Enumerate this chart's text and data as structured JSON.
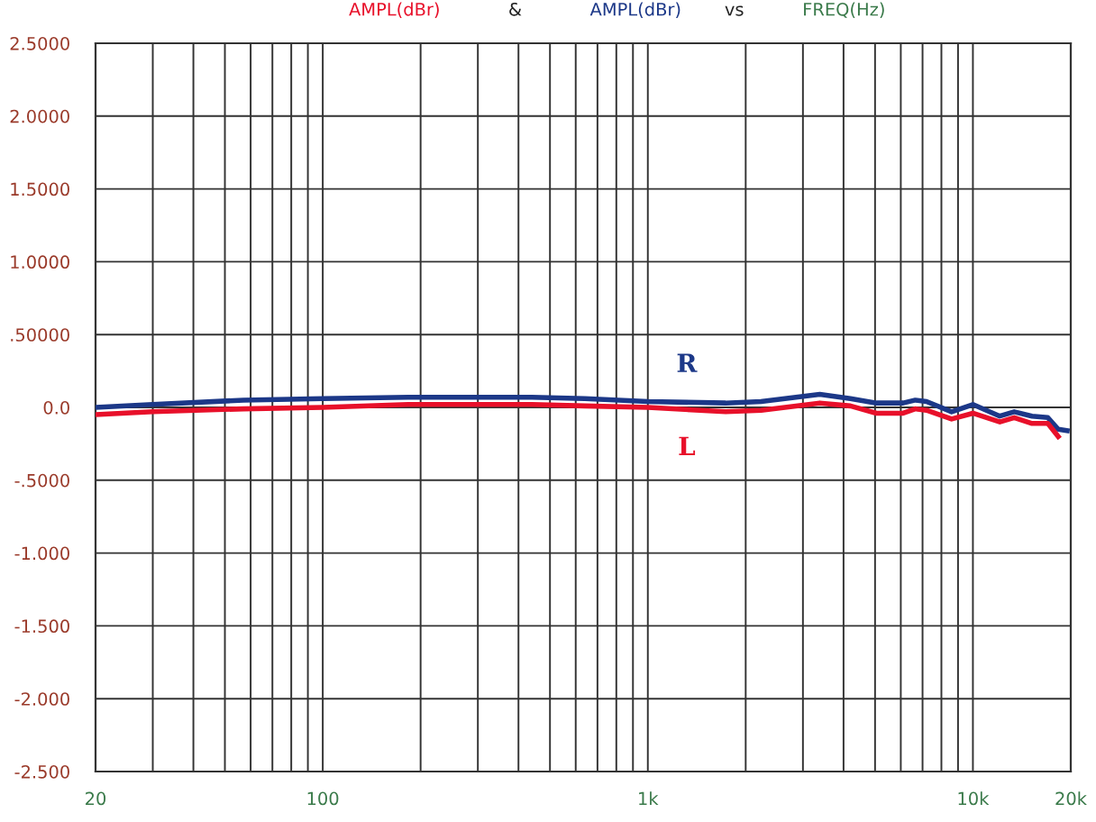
{
  "chart_data": {
    "type": "line",
    "annotations": [
      "AMPL(dBr)",
      "&",
      "AMPL(dBr)",
      "vs",
      "FREQ(Hz)"
    ],
    "x": [
      20,
      30,
      57,
      100,
      183,
      440,
      640,
      1000,
      1735,
      2230,
      3380,
      4200,
      5050,
      6100,
      6650,
      7200,
      8600,
      10000,
      12100,
      13400,
      15200,
      17000,
      18300,
      19500
    ],
    "series": [
      {
        "name": "R",
        "color": "#1c3888",
        "values": [
          0.0,
          0.02,
          0.05,
          0.06,
          0.07,
          0.07,
          0.06,
          0.04,
          0.03,
          0.04,
          0.09,
          0.06,
          0.03,
          0.03,
          0.05,
          0.04,
          -0.03,
          0.02,
          -0.06,
          -0.03,
          -0.06,
          -0.07,
          -0.15,
          -0.16
        ]
      },
      {
        "name": "L",
        "color": "#e8102a",
        "values": [
          -0.05,
          -0.03,
          -0.01,
          0.0,
          0.02,
          0.02,
          0.01,
          0.0,
          -0.03,
          -0.02,
          0.03,
          0.01,
          -0.04,
          -0.04,
          -0.01,
          -0.02,
          -0.08,
          -0.04,
          -0.1,
          -0.07,
          -0.11,
          -0.11,
          -0.2,
          null
        ]
      }
    ],
    "log": "x",
    "xlim": [
      20,
      20000
    ],
    "xticks": [
      20,
      {
        "value": 30,
        "label": null
      },
      {
        "value": 40,
        "label": null
      },
      {
        "value": 50,
        "label": null
      },
      {
        "value": 60,
        "label": null
      },
      {
        "value": 70,
        "label": null
      },
      {
        "value": 80,
        "label": null
      },
      {
        "value": 90,
        "label": null
      },
      100,
      {
        "value": 200,
        "label": null
      },
      {
        "value": 300,
        "label": null
      },
      {
        "value": 400,
        "label": null
      },
      {
        "value": 500,
        "label": null
      },
      {
        "value": 600,
        "label": null
      },
      {
        "value": 700,
        "label": null
      },
      {
        "value": 800,
        "label": null
      },
      {
        "value": 900,
        "label": null
      },
      {
        "value": 1000,
        "label": "1k"
      },
      {
        "value": 2000,
        "label": null
      },
      {
        "value": 3000,
        "label": null
      },
      {
        "value": 4000,
        "label": null
      },
      {
        "value": 5000,
        "label": null
      },
      {
        "value": 6000,
        "label": null
      },
      {
        "value": 7000,
        "label": null
      },
      {
        "value": 8000,
        "label": null
      },
      {
        "value": 9000,
        "label": null
      },
      {
        "value": 10000,
        "label": "10k"
      },
      {
        "value": 20000,
        "label": "20k"
      }
    ],
    "ylim": [
      -2.5,
      2.5
    ],
    "yticks": [
      {
        "value": 2.5,
        "label": "2.5000"
      },
      {
        "value": 2.0,
        "label": "2.0000"
      },
      {
        "value": 1.5,
        "label": "1.5000"
      },
      {
        "value": 1.0,
        "label": "1.0000"
      },
      {
        "value": 0.5,
        "label": ".50000"
      },
      {
        "value": 0,
        "label": "0.0"
      },
      {
        "value": -0.5,
        "label": "-.5000"
      },
      {
        "value": -1.0,
        "label": "-1.000"
      },
      {
        "value": -1.5,
        "label": "-1.500"
      },
      {
        "value": -2.0,
        "label": "-2.000"
      },
      {
        "value": -2.5,
        "label": "-2.500"
      }
    ],
    "grid": true,
    "legend": false,
    "marker": "none",
    "line_style": "solid"
  }
}
